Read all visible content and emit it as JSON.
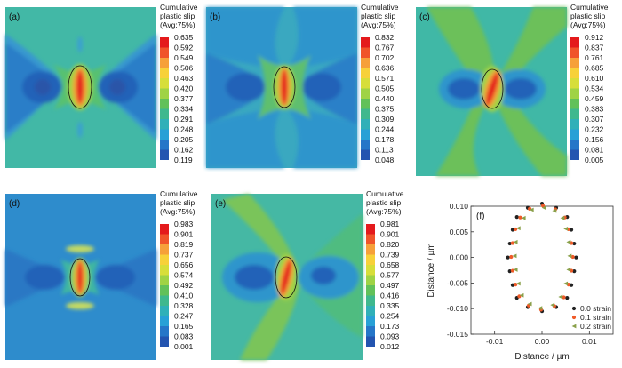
{
  "panels": [
    {
      "label": "(a)",
      "legend_title": [
        "Cumulative",
        "plastic slip",
        "(Avg:75%)"
      ],
      "values": [
        "0.635",
        "0.592",
        "0.549",
        "0.506",
        "0.463",
        "0.420",
        "0.377",
        "0.334",
        "0.291",
        "0.248",
        "0.205",
        "0.162",
        "0.119"
      ]
    },
    {
      "label": "(b)",
      "legend_title": [
        "Cumulative",
        "plastic slip",
        "(Avg:75%)"
      ],
      "values": [
        "0.832",
        "0.767",
        "0.702",
        "0.636",
        "0.571",
        "0.505",
        "0.440",
        "0.375",
        "0.309",
        "0.244",
        "0.178",
        "0.113",
        "0.048"
      ]
    },
    {
      "label": "(c)",
      "legend_title": [
        "Cumulative",
        "plastic slip",
        "(Avg:75%)"
      ],
      "values": [
        "0.912",
        "0.837",
        "0.761",
        "0.685",
        "0.610",
        "0.534",
        "0.459",
        "0.383",
        "0.307",
        "0.232",
        "0.156",
        "0.081",
        "0.005"
      ]
    },
    {
      "label": "(d)",
      "legend_title": [
        "Cumulative",
        "plastic slip",
        "(Avg:75%)"
      ],
      "values": [
        "0.983",
        "0.901",
        "0.819",
        "0.737",
        "0.656",
        "0.574",
        "0.492",
        "0.410",
        "0.328",
        "0.247",
        "0.165",
        "0.083",
        "0.001"
      ]
    },
    {
      "label": "(e)",
      "legend_title": [
        "Cumulative",
        "plastic slip",
        "(Avg:75%)"
      ],
      "values": [
        "0.981",
        "0.901",
        "0.820",
        "0.739",
        "0.658",
        "0.577",
        "0.497",
        "0.416",
        "0.335",
        "0.254",
        "0.173",
        "0.093",
        "0.012"
      ]
    }
  ],
  "legend_colors": [
    "#e41a1c",
    "#f0542a",
    "#f6a03a",
    "#f7d13a",
    "#d7de3a",
    "#9fd345",
    "#62c15a",
    "#3fb88e",
    "#30b0b8",
    "#28a0d6",
    "#2676c8",
    "#2354b0"
  ],
  "chart_data": {
    "type": "scatter",
    "label": "(f)",
    "xlabel": "Distance / µm",
    "ylabel": "Distance / µm",
    "xlim": [
      -0.015,
      0.015
    ],
    "ylim": [
      -0.015,
      0.01
    ],
    "xticks": [
      "-0.01",
      "0.00",
      "0.01"
    ],
    "yticks": [
      "0.010",
      "0.005",
      "0.000",
      "-0.005",
      "-0.010",
      "-0.015"
    ],
    "series": [
      {
        "name": "0.0 strain",
        "color": "#222222",
        "marker": "circle",
        "points": [
          [
            0,
            0.0105
          ],
          [
            0.003,
            0.0097
          ],
          [
            0.0053,
            0.0079
          ],
          [
            0.0062,
            0.0054
          ],
          [
            0.0068,
            0.0027
          ],
          [
            0.0072,
            0
          ],
          [
            0.0068,
            -0.0027
          ],
          [
            0.0062,
            -0.0054
          ],
          [
            0.0053,
            -0.0079
          ],
          [
            0.003,
            -0.0097
          ],
          [
            0,
            -0.0105
          ],
          [
            -0.003,
            -0.0097
          ],
          [
            -0.0053,
            -0.0079
          ],
          [
            -0.0062,
            -0.0054
          ],
          [
            -0.0068,
            -0.0027
          ],
          [
            -0.0072,
            0
          ],
          [
            -0.0068,
            0.0027
          ],
          [
            -0.0062,
            0.0054
          ],
          [
            -0.0053,
            0.0079
          ],
          [
            -0.003,
            0.0097
          ]
        ]
      },
      {
        "name": "0.1 strain",
        "color": "#f05a28",
        "marker": "circle",
        "points": [
          [
            0.0002,
            0.0101
          ],
          [
            0.0028,
            0.0094
          ],
          [
            0.0048,
            0.0078
          ],
          [
            0.0056,
            0.0055
          ],
          [
            0.0062,
            0.0028
          ],
          [
            0.0065,
            0.0001
          ],
          [
            0.0062,
            -0.0026
          ],
          [
            0.0056,
            -0.0053
          ],
          [
            0.0046,
            -0.0078
          ],
          [
            0.0026,
            -0.0095
          ],
          [
            -0.0002,
            -0.0102
          ],
          [
            -0.0028,
            -0.0094
          ],
          [
            -0.0048,
            -0.0076
          ],
          [
            -0.0056,
            -0.0053
          ],
          [
            -0.0062,
            -0.0026
          ],
          [
            -0.0065,
            0.0001
          ],
          [
            -0.0062,
            0.0028
          ],
          [
            -0.0056,
            0.0055
          ],
          [
            -0.0046,
            0.0078
          ],
          [
            -0.0026,
            0.0095
          ]
        ]
      },
      {
        "name": "0.2 strain",
        "color": "#8aa04a",
        "marker": "triangle",
        "points": [
          [
            0.0004,
            0.0097
          ],
          [
            0.0026,
            0.0091
          ],
          [
            0.0043,
            0.0077
          ],
          [
            0.005,
            0.0056
          ],
          [
            0.0056,
            0.003
          ],
          [
            0.0058,
            0.0003
          ],
          [
            0.0056,
            -0.0024
          ],
          [
            0.005,
            -0.0051
          ],
          [
            0.0039,
            -0.0077
          ],
          [
            0.0022,
            -0.0093
          ],
          [
            -0.0004,
            -0.0099
          ],
          [
            -0.0026,
            -0.0091
          ],
          [
            -0.0043,
            -0.0074
          ],
          [
            -0.005,
            -0.0051
          ],
          [
            -0.0056,
            -0.0024
          ],
          [
            -0.0058,
            0.0003
          ],
          [
            -0.0056,
            0.003
          ],
          [
            -0.005,
            0.0057
          ],
          [
            -0.0039,
            0.0077
          ],
          [
            -0.0022,
            0.0093
          ]
        ]
      }
    ]
  }
}
